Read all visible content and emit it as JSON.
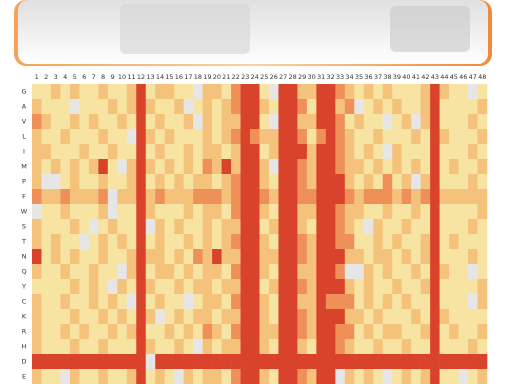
{
  "chart_data": {
    "type": "heatmap",
    "x": [
      1,
      2,
      3,
      4,
      5,
      6,
      7,
      8,
      9,
      10,
      11,
      12,
      13,
      14,
      15,
      16,
      17,
      18,
      19,
      20,
      21,
      22,
      23,
      24,
      25,
      26,
      27,
      28,
      29,
      30,
      31,
      32,
      33,
      34,
      35,
      36,
      37,
      38,
      39,
      40,
      41,
      42,
      43,
      44,
      45,
      46,
      47,
      48
    ],
    "y": [
      "G",
      "A",
      "V",
      "L",
      "I",
      "M",
      "P",
      "F",
      "W",
      "S",
      "T",
      "N",
      "Q",
      "Y",
      "C",
      "K",
      "R",
      "H",
      "D",
      "E"
    ],
    "colors": [
      "#e6e6e6",
      "#f8e4a2",
      "#f5c27c",
      "#ee9057",
      "#d9432b"
    ],
    "values": [
      [
        1,
        1,
        2,
        1,
        2,
        1,
        1,
        2,
        1,
        1,
        2,
        4,
        1,
        2,
        2,
        1,
        1,
        0,
        2,
        2,
        1,
        3,
        4,
        4,
        1,
        0,
        4,
        4,
        2,
        2,
        4,
        4,
        3,
        2,
        1,
        2,
        1,
        2,
        1,
        1,
        1,
        2,
        4,
        2,
        1,
        1,
        0,
        1
      ],
      [
        2,
        1,
        1,
        1,
        0,
        1,
        1,
        1,
        2,
        1,
        2,
        4,
        2,
        1,
        1,
        2,
        0,
        1,
        2,
        1,
        2,
        3,
        4,
        4,
        2,
        1,
        4,
        4,
        3,
        1,
        4,
        4,
        2,
        3,
        0,
        1,
        2,
        1,
        2,
        1,
        1,
        2,
        4,
        1,
        1,
        1,
        1,
        2
      ],
      [
        3,
        2,
        1,
        1,
        2,
        1,
        2,
        1,
        1,
        2,
        1,
        4,
        1,
        2,
        1,
        1,
        2,
        0,
        2,
        1,
        2,
        2,
        4,
        4,
        1,
        0,
        4,
        4,
        2,
        2,
        4,
        4,
        3,
        1,
        2,
        1,
        1,
        0,
        1,
        2,
        0,
        2,
        4,
        1,
        1,
        1,
        2,
        1
      ],
      [
        2,
        1,
        1,
        2,
        1,
        1,
        1,
        2,
        1,
        1,
        0,
        4,
        2,
        1,
        2,
        1,
        1,
        1,
        2,
        1,
        2,
        3,
        4,
        3,
        2,
        2,
        4,
        4,
        3,
        1,
        3,
        4,
        3,
        2,
        1,
        1,
        2,
        1,
        1,
        1,
        2,
        1,
        4,
        2,
        1,
        1,
        1,
        2
      ],
      [
        2,
        2,
        1,
        1,
        1,
        2,
        1,
        1,
        2,
        1,
        1,
        4,
        1,
        2,
        1,
        1,
        2,
        1,
        2,
        2,
        1,
        2,
        4,
        4,
        1,
        2,
        4,
        4,
        4,
        2,
        4,
        4,
        3,
        2,
        1,
        2,
        1,
        0,
        2,
        1,
        1,
        1,
        4,
        1,
        1,
        1,
        2,
        1
      ],
      [
        2,
        1,
        2,
        1,
        2,
        1,
        2,
        4,
        1,
        0,
        2,
        4,
        2,
        1,
        2,
        1,
        2,
        1,
        3,
        2,
        4,
        2,
        4,
        4,
        2,
        0,
        4,
        4,
        3,
        2,
        4,
        4,
        3,
        2,
        2,
        1,
        2,
        1,
        2,
        1,
        2,
        1,
        4,
        1,
        2,
        1,
        1,
        2
      ],
      [
        2,
        0,
        0,
        1,
        2,
        1,
        1,
        2,
        1,
        1,
        2,
        4,
        1,
        2,
        1,
        2,
        1,
        2,
        2,
        1,
        2,
        3,
        4,
        4,
        2,
        1,
        4,
        4,
        3,
        2,
        4,
        4,
        4,
        2,
        1,
        2,
        1,
        3,
        1,
        2,
        0,
        2,
        4,
        1,
        1,
        1,
        2,
        1
      ],
      [
        3,
        2,
        2,
        3,
        2,
        2,
        2,
        3,
        0,
        2,
        2,
        4,
        2,
        3,
        2,
        2,
        2,
        3,
        3,
        3,
        2,
        3,
        4,
        4,
        3,
        2,
        4,
        4,
        3,
        3,
        4,
        4,
        4,
        3,
        2,
        3,
        3,
        3,
        2,
        3,
        2,
        3,
        4,
        2,
        2,
        2,
        2,
        2
      ],
      [
        0,
        1,
        1,
        2,
        1,
        1,
        1,
        2,
        0,
        1,
        1,
        4,
        2,
        1,
        1,
        1,
        2,
        1,
        2,
        2,
        1,
        3,
        4,
        4,
        2,
        1,
        4,
        4,
        2,
        2,
        4,
        4,
        3,
        2,
        2,
        1,
        1,
        2,
        1,
        1,
        2,
        1,
        4,
        1,
        1,
        1,
        1,
        2
      ],
      [
        2,
        1,
        1,
        1,
        2,
        1,
        0,
        1,
        2,
        1,
        1,
        4,
        0,
        2,
        1,
        2,
        1,
        1,
        2,
        1,
        2,
        2,
        4,
        4,
        1,
        2,
        4,
        4,
        2,
        1,
        4,
        4,
        3,
        2,
        1,
        0,
        2,
        1,
        1,
        2,
        1,
        1,
        4,
        1,
        1,
        1,
        2,
        1
      ],
      [
        2,
        1,
        2,
        1,
        1,
        0,
        1,
        2,
        1,
        2,
        1,
        4,
        1,
        2,
        1,
        1,
        2,
        1,
        2,
        1,
        2,
        3,
        4,
        4,
        2,
        1,
        4,
        4,
        3,
        2,
        4,
        4,
        3,
        3,
        1,
        1,
        2,
        1,
        2,
        1,
        1,
        2,
        4,
        1,
        2,
        1,
        1,
        1
      ],
      [
        4,
        1,
        2,
        1,
        2,
        1,
        1,
        2,
        1,
        1,
        2,
        4,
        2,
        2,
        1,
        2,
        1,
        3,
        2,
        4,
        2,
        2,
        4,
        4,
        2,
        2,
        4,
        4,
        3,
        2,
        4,
        4,
        4,
        2,
        2,
        1,
        2,
        2,
        1,
        2,
        1,
        2,
        4,
        1,
        1,
        1,
        2,
        1
      ],
      [
        2,
        1,
        1,
        2,
        1,
        1,
        2,
        1,
        1,
        0,
        2,
        4,
        1,
        2,
        2,
        1,
        2,
        1,
        2,
        2,
        1,
        3,
        4,
        4,
        2,
        1,
        4,
        4,
        2,
        2,
        4,
        4,
        3,
        0,
        0,
        2,
        1,
        2,
        1,
        1,
        2,
        1,
        4,
        2,
        1,
        1,
        0,
        1
      ],
      [
        1,
        1,
        1,
        1,
        2,
        1,
        2,
        1,
        0,
        2,
        1,
        4,
        2,
        1,
        1,
        2,
        1,
        2,
        2,
        1,
        2,
        2,
        4,
        4,
        1,
        2,
        4,
        4,
        3,
        2,
        4,
        4,
        4,
        2,
        1,
        2,
        1,
        1,
        2,
        1,
        1,
        2,
        4,
        1,
        1,
        1,
        1,
        2
      ],
      [
        2,
        1,
        1,
        2,
        1,
        1,
        2,
        1,
        2,
        1,
        0,
        4,
        1,
        2,
        1,
        1,
        0,
        1,
        2,
        2,
        1,
        3,
        4,
        4,
        2,
        1,
        4,
        4,
        2,
        2,
        4,
        3,
        3,
        3,
        1,
        2,
        1,
        2,
        1,
        2,
        1,
        1,
        4,
        1,
        1,
        1,
        0,
        2
      ],
      [
        2,
        1,
        1,
        1,
        2,
        1,
        1,
        2,
        1,
        2,
        1,
        4,
        2,
        0,
        1,
        2,
        1,
        2,
        2,
        1,
        2,
        2,
        4,
        4,
        2,
        1,
        4,
        4,
        3,
        2,
        4,
        4,
        4,
        2,
        2,
        1,
        2,
        1,
        1,
        1,
        2,
        1,
        4,
        2,
        1,
        1,
        1,
        1
      ],
      [
        2,
        1,
        1,
        2,
        1,
        2,
        1,
        1,
        2,
        1,
        2,
        4,
        1,
        1,
        2,
        1,
        2,
        1,
        3,
        2,
        1,
        3,
        4,
        4,
        2,
        2,
        4,
        4,
        3,
        2,
        4,
        4,
        3,
        3,
        1,
        2,
        1,
        2,
        2,
        1,
        1,
        2,
        4,
        1,
        2,
        1,
        1,
        2
      ],
      [
        2,
        1,
        1,
        1,
        2,
        1,
        1,
        2,
        1,
        1,
        1,
        4,
        2,
        1,
        1,
        2,
        1,
        0,
        2,
        1,
        2,
        2,
        4,
        4,
        2,
        1,
        4,
        4,
        2,
        1,
        4,
        4,
        3,
        2,
        1,
        1,
        2,
        1,
        1,
        2,
        1,
        1,
        4,
        1,
        1,
        1,
        2,
        1
      ],
      [
        4,
        4,
        4,
        4,
        4,
        4,
        4,
        4,
        4,
        4,
        4,
        4,
        0,
        4,
        4,
        4,
        4,
        4,
        4,
        4,
        4,
        4,
        4,
        4,
        4,
        4,
        4,
        4,
        4,
        4,
        4,
        4,
        4,
        4,
        4,
        4,
        4,
        4,
        4,
        4,
        4,
        4,
        4,
        4,
        4,
        4,
        4,
        4
      ],
      [
        2,
        1,
        1,
        0,
        2,
        1,
        1,
        2,
        1,
        1,
        2,
        4,
        1,
        2,
        1,
        0,
        2,
        1,
        2,
        2,
        1,
        3,
        4,
        4,
        2,
        1,
        4,
        4,
        3,
        2,
        4,
        4,
        0,
        2,
        1,
        2,
        1,
        0,
        1,
        2,
        1,
        2,
        4,
        1,
        1,
        0,
        1,
        2
      ]
    ]
  }
}
